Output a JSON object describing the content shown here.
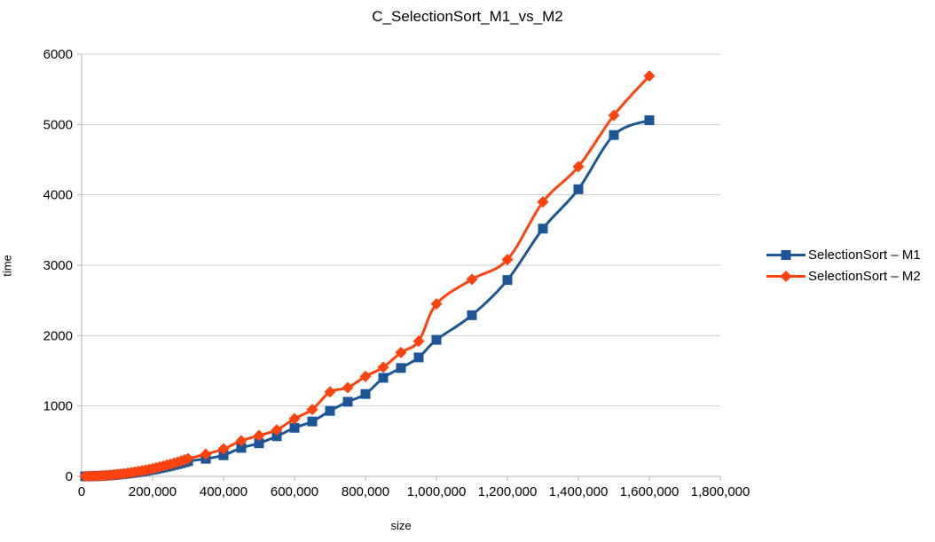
{
  "title": "C_SelectionSort_M1_vs_M2",
  "chart_data": {
    "type": "line",
    "title": "C_SelectionSort_M1_vs_M2",
    "xlabel": "size",
    "ylabel": "time",
    "xlim": [
      0,
      1800000
    ],
    "ylim": [
      0,
      6000
    ],
    "grid": "horizontal-only",
    "legend_position": "right",
    "colors": {
      "grid": "#cccccc",
      "axis": "#b3b3b3",
      "text": "#000000",
      "background": "#ffffff"
    },
    "x_ticks": [
      {
        "value": 0,
        "label": "0"
      },
      {
        "value": 200000,
        "label": "200,000"
      },
      {
        "value": 400000,
        "label": "400,000"
      },
      {
        "value": 600000,
        "label": "600,000"
      },
      {
        "value": 800000,
        "label": "800,000"
      },
      {
        "value": 1000000,
        "label": "1,000,000"
      },
      {
        "value": 1200000,
        "label": "1,200,000"
      },
      {
        "value": 1400000,
        "label": "1,400,000"
      },
      {
        "value": 1600000,
        "label": "1,600,000"
      },
      {
        "value": 1800000,
        "label": "1,800,000"
      }
    ],
    "y_ticks": [
      {
        "value": 0,
        "label": "0"
      },
      {
        "value": 1000,
        "label": "1000"
      },
      {
        "value": 2000,
        "label": "2000"
      },
      {
        "value": 3000,
        "label": "3000"
      },
      {
        "value": 4000,
        "label": "4000"
      },
      {
        "value": 5000,
        "label": "5000"
      },
      {
        "value": 6000,
        "label": "6000"
      }
    ],
    "x": [
      10000,
      20000,
      30000,
      40000,
      50000,
      60000,
      70000,
      80000,
      90000,
      100000,
      110000,
      120000,
      130000,
      140000,
      150000,
      160000,
      170000,
      180000,
      190000,
      200000,
      210000,
      220000,
      230000,
      240000,
      250000,
      260000,
      270000,
      280000,
      290000,
      300000,
      350000,
      400000,
      450000,
      500000,
      550000,
      600000,
      650000,
      700000,
      750000,
      800000,
      850000,
      900000,
      950000,
      1000000,
      1100000,
      1200000,
      1300000,
      1400000,
      1500000,
      1600000
    ],
    "series": [
      {
        "name": "SelectionSort – M1",
        "color": "#1d5696",
        "marker": "square",
        "y": [
          0,
          1,
          2,
          4,
          6,
          9,
          12,
          15,
          19,
          24,
          29,
          34,
          40,
          47,
          54,
          61,
          69,
          77,
          86,
          96,
          105,
          116,
          126,
          138,
          149,
          162,
          174,
          187,
          201,
          215,
          250,
          300,
          405,
          470,
          570,
          690,
          780,
          930,
          1060,
          1170,
          1400,
          1540,
          1690,
          1940,
          2290,
          2790,
          3520,
          4080,
          4850,
          5060
        ]
      },
      {
        "name": "SelectionSort – M2",
        "color": "#ff420e",
        "marker": "diamond",
        "y": [
          0,
          1,
          3,
          4,
          7,
          10,
          14,
          18,
          23,
          28,
          34,
          40,
          47,
          54,
          63,
          71,
          80,
          90,
          100,
          111,
          123,
          135,
          147,
          160,
          174,
          188,
          203,
          218,
          234,
          250,
          315,
          390,
          505,
          580,
          660,
          820,
          950,
          1200,
          1260,
          1420,
          1550,
          1760,
          1920,
          2450,
          2800,
          3080,
          3900,
          4400,
          5130,
          5690
        ]
      }
    ]
  }
}
